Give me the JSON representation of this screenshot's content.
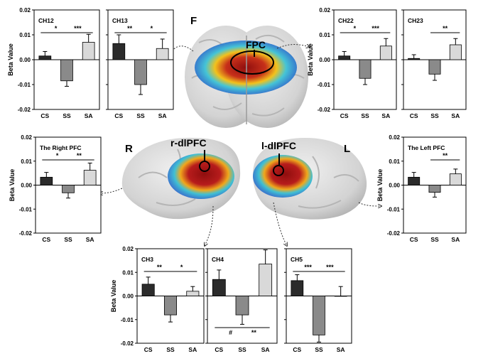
{
  "colors": {
    "CS": "#2b2b2b",
    "SS": "#8a8a8a",
    "SA": "#d9d9d9",
    "frame": "#000000",
    "brain": "#d6d6d6",
    "activation_high": "#a31515",
    "activation_mid": "#f2c21c",
    "activation_low": "#2f6fd6"
  },
  "brain_labels": {
    "frontal_view": "F",
    "fpc": "FPC",
    "right_side": "R",
    "left_side": "L",
    "r_dlpfc": "r-dlPFC",
    "l_dlpfc": "l-dlPFC"
  },
  "chart_data": [
    {
      "type": "bar",
      "title": "CH12",
      "categories": [
        "CS",
        "SS",
        "SA"
      ],
      "values": [
        0.0015,
        -0.0085,
        0.007
      ],
      "errors": [
        0.0018,
        0.0022,
        0.0032
      ],
      "ylabel": "Beta Value",
      "ylim": [
        -0.02,
        0.02
      ],
      "yticks": [
        "0.02",
        "0.01",
        "0.00",
        "-0.01",
        "-0.02"
      ],
      "show_yticks": true,
      "sig": [
        {
          "from": "CS",
          "to": "SS",
          "label": "*",
          "pos": "top"
        },
        {
          "from": "SS",
          "to": "SA",
          "label": "***",
          "pos": "top"
        }
      ]
    },
    {
      "type": "bar",
      "title": "CH13",
      "categories": [
        "CS",
        "SS",
        "SA"
      ],
      "values": [
        0.0065,
        -0.01,
        0.0045
      ],
      "errors": [
        0.0035,
        0.004,
        0.0038
      ],
      "ylabel": "",
      "ylim": [
        -0.02,
        0.02
      ],
      "yticks": [
        "",
        "",
        "",
        "",
        ""
      ],
      "show_yticks": false,
      "sig": [
        {
          "from": "CS",
          "to": "SS",
          "label": "**",
          "pos": "top"
        },
        {
          "from": "SS",
          "to": "SA",
          "label": "*",
          "pos": "top"
        }
      ]
    },
    {
      "type": "bar",
      "title": "CH22",
      "categories": [
        "CS",
        "SS",
        "SA"
      ],
      "values": [
        0.0015,
        -0.0075,
        0.0055
      ],
      "errors": [
        0.0018,
        0.0025,
        0.003
      ],
      "ylabel": "Beta Value",
      "ylim": [
        -0.02,
        0.02
      ],
      "yticks": [
        "0.02",
        "0.01",
        "0.00",
        "-0.01",
        "-0.02"
      ],
      "show_yticks": true,
      "sig": [
        {
          "from": "CS",
          "to": "SS",
          "label": "*",
          "pos": "top"
        },
        {
          "from": "SS",
          "to": "SA",
          "label": "***",
          "pos": "top"
        }
      ]
    },
    {
      "type": "bar",
      "title": "CH23",
      "categories": [
        "CS",
        "SS",
        "SA"
      ],
      "values": [
        0.0005,
        -0.0058,
        0.006
      ],
      "errors": [
        0.0015,
        0.0025,
        0.0025
      ],
      "ylabel": "",
      "ylim": [
        -0.02,
        0.02
      ],
      "yticks": [
        "",
        "",
        "",
        "",
        ""
      ],
      "show_yticks": false,
      "sig": [
        {
          "from": "SS",
          "to": "SA",
          "label": "**",
          "pos": "top"
        }
      ]
    },
    {
      "type": "bar",
      "title": "The Right PFC",
      "categories": [
        "CS",
        "SS",
        "SA"
      ],
      "values": [
        0.0033,
        -0.0032,
        0.0062
      ],
      "errors": [
        0.002,
        0.0022,
        0.003
      ],
      "ylabel": "Beta Value",
      "ylim": [
        -0.02,
        0.02
      ],
      "yticks": [
        "0.02",
        "0.01",
        "0.00",
        "-0.01",
        "-0.02"
      ],
      "show_yticks": true,
      "sig": [
        {
          "from": "CS",
          "to": "SS",
          "label": "*",
          "pos": "top"
        },
        {
          "from": "SS",
          "to": "SA",
          "label": "**",
          "pos": "top"
        }
      ]
    },
    {
      "type": "bar",
      "title": "The Left PFC",
      "categories": [
        "CS",
        "SS",
        "SA"
      ],
      "values": [
        0.0033,
        -0.003,
        0.0047
      ],
      "errors": [
        0.002,
        0.002,
        0.002
      ],
      "ylabel": "Beta Value",
      "ylim": [
        -0.02,
        0.02
      ],
      "yticks": [
        "0.02",
        "0.01",
        "0.00",
        "-0.01",
        "-0.02"
      ],
      "show_yticks": true,
      "sig": [
        {
          "from": "SS",
          "to": "SA",
          "label": "**",
          "pos": "top"
        }
      ]
    },
    {
      "type": "bar",
      "title": "CH3",
      "categories": [
        "CS",
        "SS",
        "SA"
      ],
      "values": [
        0.005,
        -0.008,
        0.002
      ],
      "errors": [
        0.003,
        0.003,
        0.002
      ],
      "ylabel": "Beta Value",
      "ylim": [
        -0.02,
        0.02
      ],
      "yticks": [
        "0.02",
        "0.01",
        "0.00",
        "-0.01",
        "-0.02"
      ],
      "show_yticks": true,
      "sig": [
        {
          "from": "CS",
          "to": "SS",
          "label": "**",
          "pos": "top"
        },
        {
          "from": "SS",
          "to": "SA",
          "label": "*",
          "pos": "top"
        }
      ]
    },
    {
      "type": "bar",
      "title": "CH4",
      "categories": [
        "CS",
        "SS",
        "SA"
      ],
      "values": [
        0.007,
        -0.008,
        0.0135
      ],
      "errors": [
        0.004,
        0.004,
        0.006
      ],
      "ylabel": "",
      "ylim": [
        -0.02,
        0.02
      ],
      "yticks": [
        "",
        "",
        "",
        "",
        ""
      ],
      "show_yticks": false,
      "sig": [
        {
          "from": "CS",
          "to": "SS",
          "label": "#",
          "pos": "bottom"
        },
        {
          "from": "SS",
          "to": "SA",
          "label": "**",
          "pos": "bottom"
        }
      ]
    },
    {
      "type": "bar",
      "title": "CH5",
      "categories": [
        "CS",
        "SS",
        "SA"
      ],
      "values": [
        0.0065,
        -0.0165,
        0.0
      ],
      "errors": [
        0.0025,
        0.003,
        0.004
      ],
      "ylabel": "",
      "ylim": [
        -0.02,
        0.02
      ],
      "yticks": [
        "",
        "",
        "",
        "",
        ""
      ],
      "show_yticks": false,
      "sig": [
        {
          "from": "CS",
          "to": "SS",
          "label": "***",
          "pos": "top"
        },
        {
          "from": "SS",
          "to": "SA",
          "label": "***",
          "pos": "top"
        }
      ]
    }
  ]
}
